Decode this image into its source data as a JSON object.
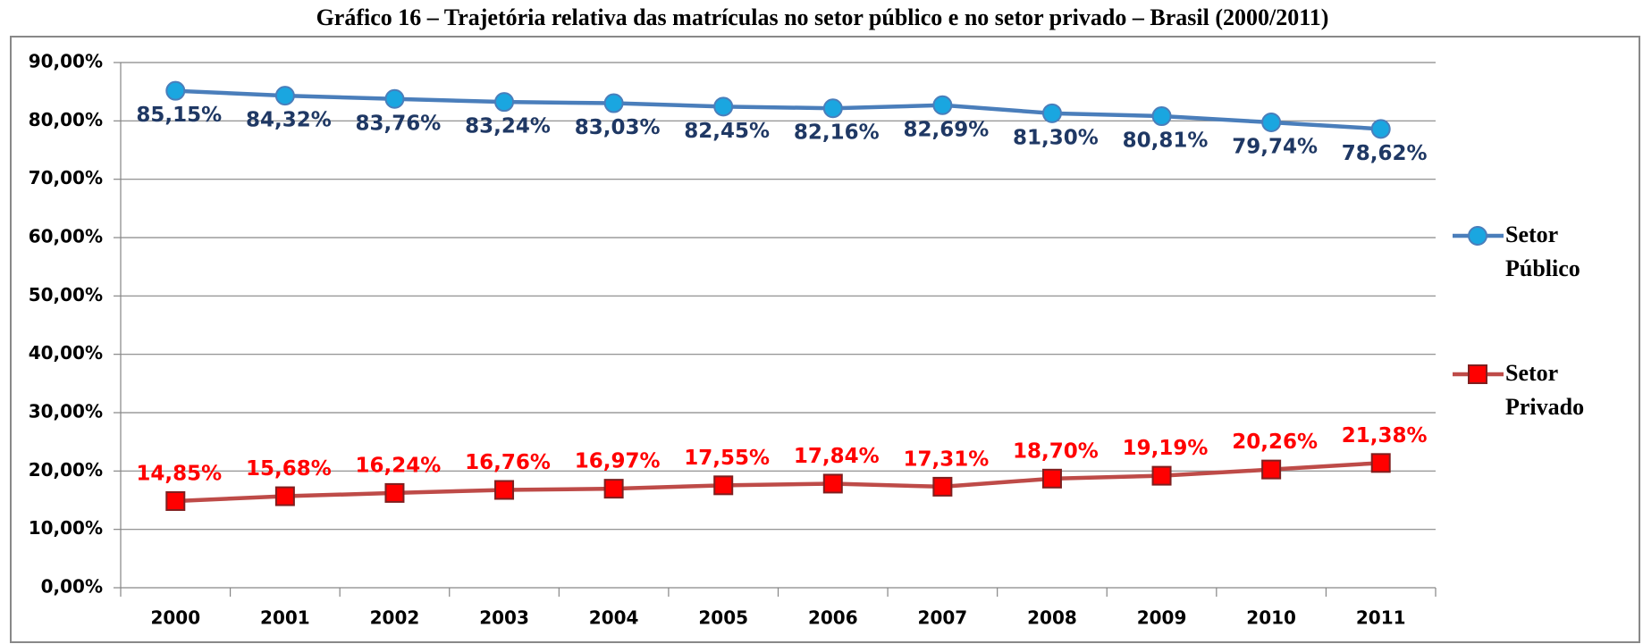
{
  "chart_data": {
    "type": "line",
    "title": "Gráfico 16 – Trajetória relativa das matrículas no setor público e no setor privado – Brasil (2000/2011)",
    "categories": [
      "2000",
      "2001",
      "2002",
      "2003",
      "2004",
      "2005",
      "2006",
      "2007",
      "2008",
      "2009",
      "2010",
      "2011"
    ],
    "series": [
      {
        "name": "Setor Público",
        "color": "#4a7ebb",
        "marker": "circle",
        "marker_color": "#1aa6e0",
        "label_color": "#1f3864",
        "label_position": "below",
        "values": [
          85.15,
          84.32,
          83.76,
          83.24,
          83.03,
          82.45,
          82.16,
          82.69,
          81.3,
          80.81,
          79.74,
          78.62
        ],
        "value_labels": [
          "85,15%",
          "84,32%",
          "83,76%",
          "83,24%",
          "83,03%",
          "82,45%",
          "82,16%",
          "82,69%",
          "81,30%",
          "80,81%",
          "79,74%",
          "78,62%"
        ]
      },
      {
        "name": "Setor Privado",
        "color": "#be4b48",
        "marker": "square",
        "marker_color": "#ff0000",
        "label_color": "#ff0000",
        "label_position": "above",
        "values": [
          14.85,
          15.68,
          16.24,
          16.76,
          16.97,
          17.55,
          17.84,
          17.31,
          18.7,
          19.19,
          20.26,
          21.38
        ],
        "value_labels": [
          "14,85%",
          "15,68%",
          "16,24%",
          "16,76%",
          "16,97%",
          "17,55%",
          "17,84%",
          "17,31%",
          "18,70%",
          "19,19%",
          "20,26%",
          "21,38%"
        ]
      }
    ],
    "ylim": [
      0,
      90
    ],
    "yticks": [
      {
        "value": 0,
        "label": "0,00%"
      },
      {
        "value": 10,
        "label": "10,00%"
      },
      {
        "value": 20,
        "label": "20,00%"
      },
      {
        "value": 30,
        "label": "30,00%"
      },
      {
        "value": 40,
        "label": "40,00%"
      },
      {
        "value": 50,
        "label": "50,00%"
      },
      {
        "value": 60,
        "label": "60,00%"
      },
      {
        "value": 70,
        "label": "70,00%"
      },
      {
        "value": 80,
        "label": "80,00%"
      },
      {
        "value": 90,
        "label": "90,00%"
      }
    ],
    "grid": true,
    "legend": "right"
  }
}
